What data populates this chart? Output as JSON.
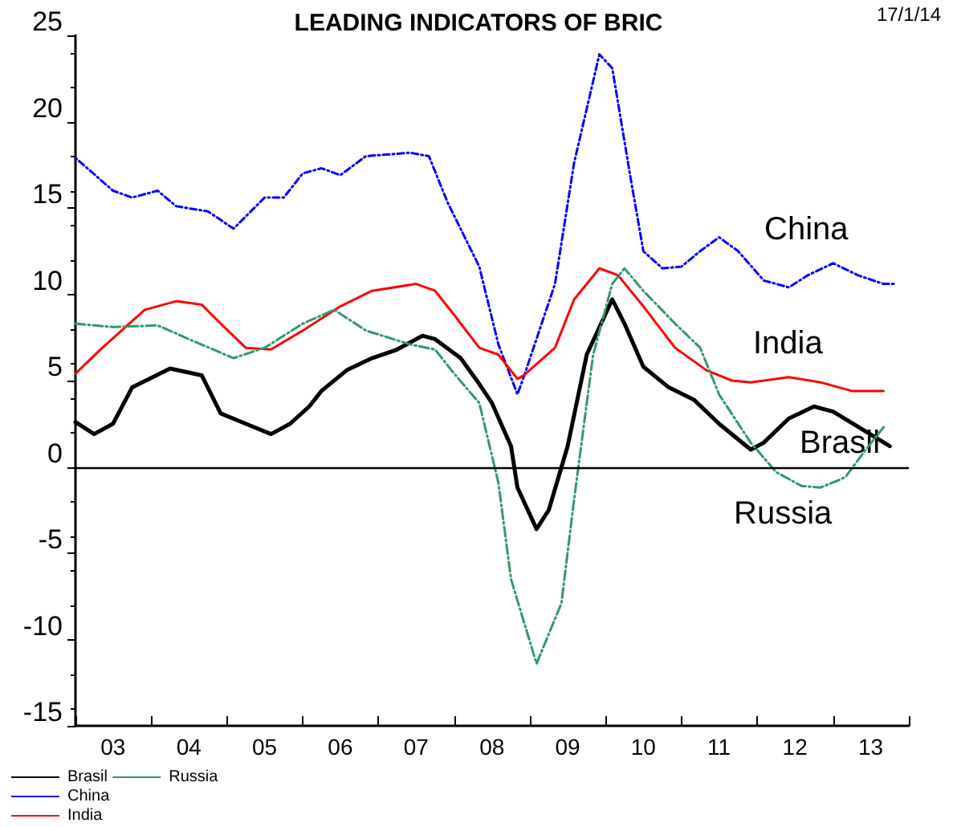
{
  "chart_data": {
    "type": "line",
    "title": "LEADING INDICATORS OF BRIC",
    "annotations": [
      "17/1/14",
      "China",
      "India",
      "Brasil",
      "Russia"
    ],
    "series": [
      {
        "name": "Brasil",
        "color": "#000000",
        "line_style": "solid",
        "x": [
          "2003-01",
          "2003-04",
          "2003-07",
          "2003-10",
          "2004-04",
          "2004-09",
          "2004-12",
          "2005-04",
          "2005-08",
          "2005-11",
          "2006-02",
          "2006-04",
          "2006-08",
          "2006-12",
          "2007-04",
          "2007-08",
          "2007-10",
          "2008-02",
          "2008-05",
          "2008-07",
          "2008-10",
          "2008-11",
          "2009-02",
          "2009-04",
          "2009-07",
          "2009-10",
          "2010-02",
          "2010-04",
          "2010-07",
          "2010-11",
          "2011-03",
          "2011-07",
          "2011-12",
          "2012-02",
          "2012-06",
          "2012-10",
          "2013-01",
          "2013-06",
          "2013-10"
        ],
        "values": [
          2.6,
          1.9,
          2.5,
          4.6,
          5.7,
          5.3,
          3.1,
          2.5,
          1.9,
          2.5,
          3.5,
          4.4,
          5.6,
          6.3,
          6.8,
          7.6,
          7.4,
          6.3,
          4.8,
          3.7,
          1.2,
          -1.2,
          -3.6,
          -2.5,
          1.2,
          6.5,
          9.7,
          8.3,
          5.8,
          4.6,
          3.9,
          2.5,
          1.0,
          1.4,
          2.8,
          3.5,
          3.2,
          2.1,
          1.2
        ]
      },
      {
        "name": "China",
        "color": "#0000ff",
        "line_style": "dotted",
        "x": [
          "2003-01",
          "2003-07",
          "2003-10",
          "2004-02",
          "2004-05",
          "2004-10",
          "2005-02",
          "2005-07",
          "2005-10",
          "2006-01",
          "2006-04",
          "2006-07",
          "2006-11",
          "2007-06",
          "2007-09",
          "2007-12",
          "2008-05",
          "2008-08",
          "2008-11",
          "2008-12",
          "2009-05",
          "2009-08",
          "2009-12",
          "2010-02",
          "2010-05",
          "2010-07",
          "2010-10",
          "2011-01",
          "2011-04",
          "2011-07",
          "2011-10",
          "2012-02",
          "2012-06",
          "2012-09",
          "2013-01",
          "2013-05",
          "2013-09",
          "2013-11"
        ],
        "values": [
          17.9,
          16.0,
          15.6,
          16.0,
          15.1,
          14.8,
          13.8,
          15.6,
          15.6,
          17.0,
          17.3,
          16.9,
          18.0,
          18.2,
          18.0,
          15.3,
          11.6,
          7.1,
          4.2,
          5.2,
          10.6,
          17.6,
          23.9,
          23.1,
          16.7,
          12.5,
          11.5,
          11.6,
          12.5,
          13.3,
          12.5,
          10.8,
          10.4,
          11.1,
          11.8,
          11.1,
          10.6,
          10.6
        ]
      },
      {
        "name": "India",
        "color": "#ff0000",
        "line_style": "solid",
        "x": [
          "2003-01",
          "2003-05",
          "2003-12",
          "2004-05",
          "2004-09",
          "2004-12",
          "2005-04",
          "2005-08",
          "2006-01",
          "2006-07",
          "2006-12",
          "2007-07",
          "2007-10",
          "2008-01",
          "2008-05",
          "2008-08",
          "2008-11",
          "2008-12",
          "2009-05",
          "2009-08",
          "2009-12",
          "2010-03",
          "2010-07",
          "2010-12",
          "2011-05",
          "2011-09",
          "2011-12",
          "2012-06",
          "2012-11",
          "2013-04",
          "2013-09"
        ],
        "values": [
          5.4,
          6.8,
          9.1,
          9.6,
          9.4,
          8.3,
          6.9,
          6.8,
          7.9,
          9.3,
          10.2,
          10.6,
          10.2,
          8.8,
          6.9,
          6.5,
          5.1,
          5.3,
          6.9,
          9.7,
          11.5,
          11.1,
          9.3,
          6.9,
          5.6,
          5.0,
          4.9,
          5.2,
          4.9,
          4.4,
          4.4
        ]
      },
      {
        "name": "Russia",
        "color": "#339966",
        "line_style": "dashed",
        "x": [
          "2003-01",
          "2003-07",
          "2004-02",
          "2004-07",
          "2005-02",
          "2005-07",
          "2006-01",
          "2006-06",
          "2006-11",
          "2007-06",
          "2007-10",
          "2008-01",
          "2008-05",
          "2008-08",
          "2008-10",
          "2009-02",
          "2009-06",
          "2009-08",
          "2009-11",
          "2010-02",
          "2010-04",
          "2010-07",
          "2010-12",
          "2011-04",
          "2011-07",
          "2011-12",
          "2012-04",
          "2012-08",
          "2012-11",
          "2013-03",
          "2013-06",
          "2013-09"
        ],
        "values": [
          8.3,
          8.1,
          8.2,
          7.4,
          6.3,
          6.9,
          8.3,
          9.1,
          7.9,
          7.1,
          6.8,
          5.4,
          3.7,
          -0.9,
          -6.5,
          -11.4,
          -7.9,
          -1.9,
          6.5,
          10.6,
          11.5,
          10.2,
          8.3,
          6.9,
          4.2,
          1.4,
          -0.3,
          -1.1,
          -1.2,
          -0.6,
          0.9,
          2.3
        ]
      }
    ],
    "xlim": [
      "2003",
      "2014"
    ],
    "xticks": [
      {
        "value": "2003",
        "label": null
      },
      {
        "value": "2003-07",
        "label": "03"
      },
      {
        "value": "2004",
        "label": null
      },
      {
        "value": "2004-07",
        "label": "04"
      },
      {
        "value": "2005",
        "label": null
      },
      {
        "value": "2005-07",
        "label": "05"
      },
      {
        "value": "2006",
        "label": null
      },
      {
        "value": "2006-07",
        "label": "06"
      },
      {
        "value": "2007",
        "label": null
      },
      {
        "value": "2007-07",
        "label": "07"
      },
      {
        "value": "2008",
        "label": null
      },
      {
        "value": "2008-07",
        "label": "08"
      },
      {
        "value": "2009",
        "label": null
      },
      {
        "value": "2009-07",
        "label": "09"
      },
      {
        "value": "2010",
        "label": null
      },
      {
        "value": "2010-07",
        "label": "10"
      },
      {
        "value": "2011",
        "label": null
      },
      {
        "value": "2011-07",
        "label": "11"
      },
      {
        "value": "2012",
        "label": null
      },
      {
        "value": "2012-07",
        "label": "12"
      },
      {
        "value": "2013",
        "label": null
      },
      {
        "value": "2013-07",
        "label": "13"
      },
      {
        "value": "2014",
        "label": null
      }
    ],
    "ylim": [
      -15,
      25
    ],
    "yticks": [
      -15,
      -10,
      -5,
      0,
      5,
      10,
      15,
      20,
      25
    ],
    "ref_lines": [
      {
        "axis": "y",
        "value": 0,
        "color": "#000000"
      }
    ],
    "grid": false,
    "legend": "bottom left",
    "marker": "none"
  }
}
